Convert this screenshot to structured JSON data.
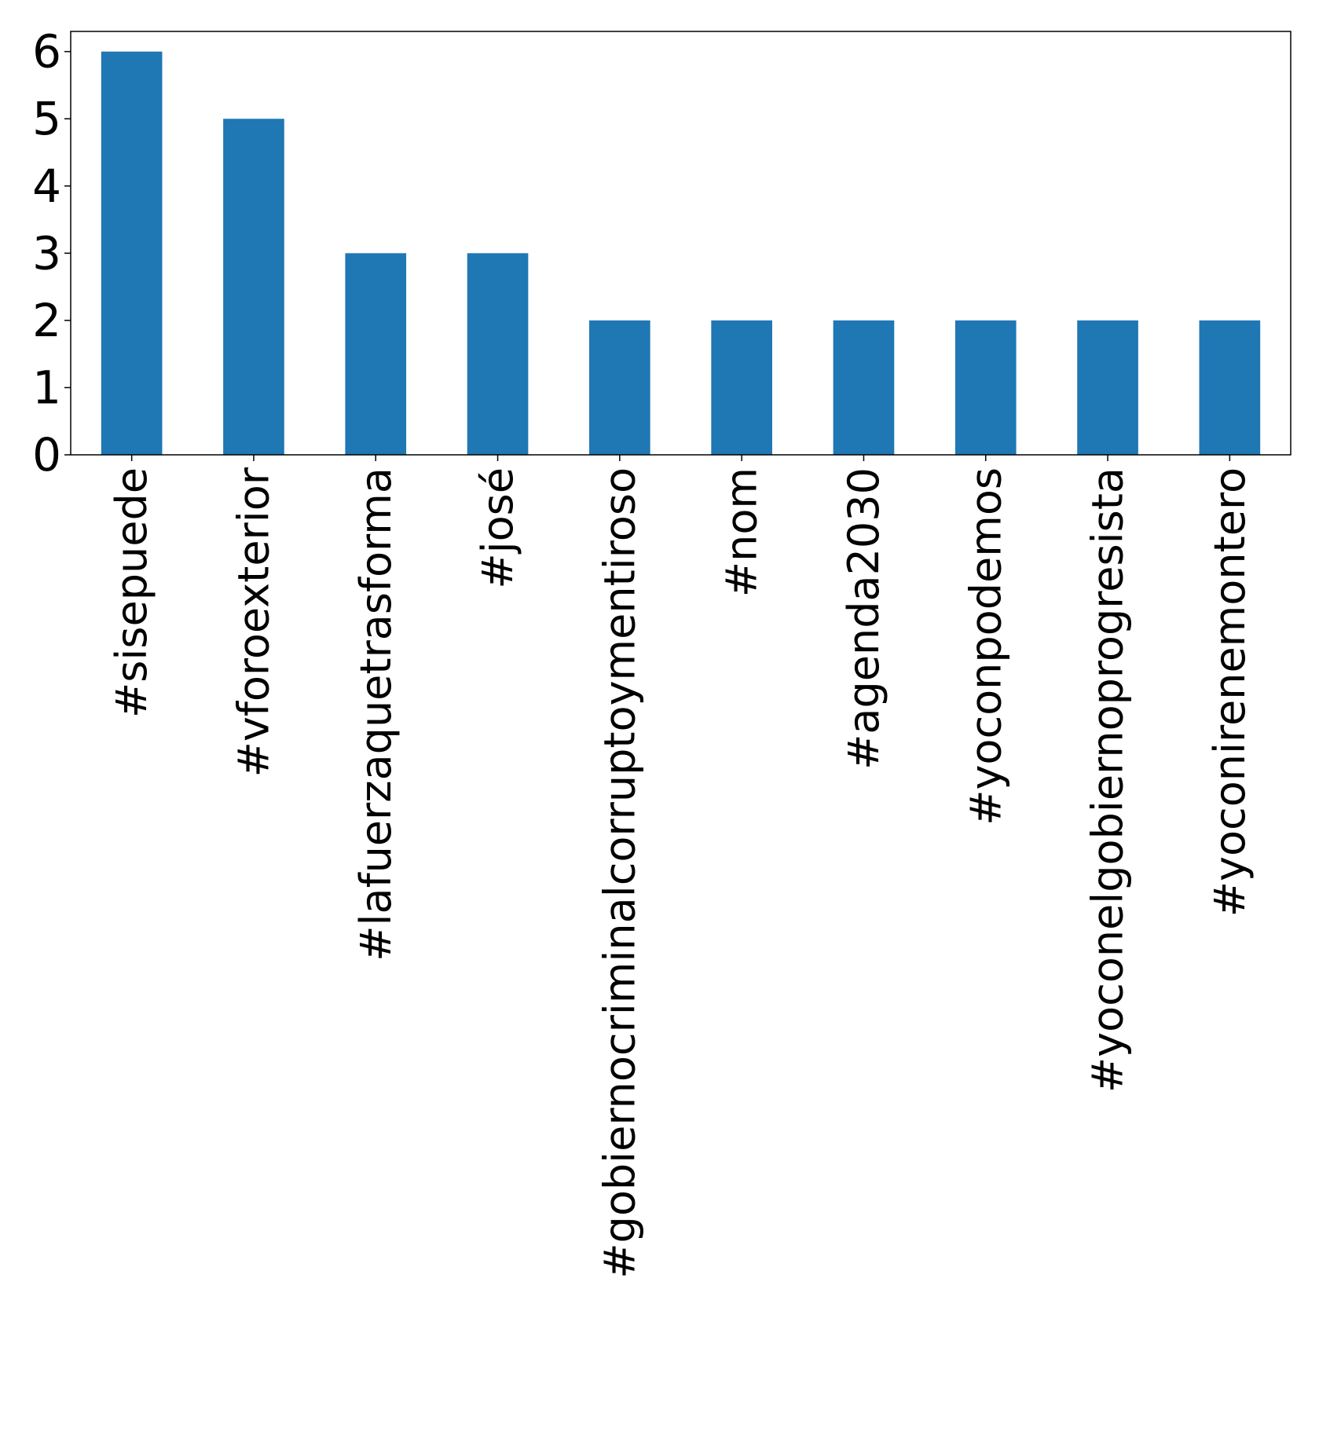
{
  "chart_data": {
    "type": "bar",
    "categories": [
      "#sisepuede",
      "#vforoexterior",
      "#lafuerzaquetrasforma",
      "#josé",
      "#gobiernocriminalcorruptoymentiroso",
      "#nom",
      "#agenda2030",
      "#yoconpodemos",
      "#yoconelgobiernoprogresista",
      "#yoconirenemontero"
    ],
    "values": [
      6,
      5,
      3,
      3,
      2,
      2,
      2,
      2,
      2,
      2
    ],
    "ylim": [
      0,
      6.3
    ],
    "yticks": [
      0,
      1,
      2,
      3,
      4,
      5,
      6
    ],
    "title": "",
    "xlabel": "",
    "ylabel": "",
    "grid": false,
    "legend": "none",
    "bar_color": "#1f77b4"
  }
}
